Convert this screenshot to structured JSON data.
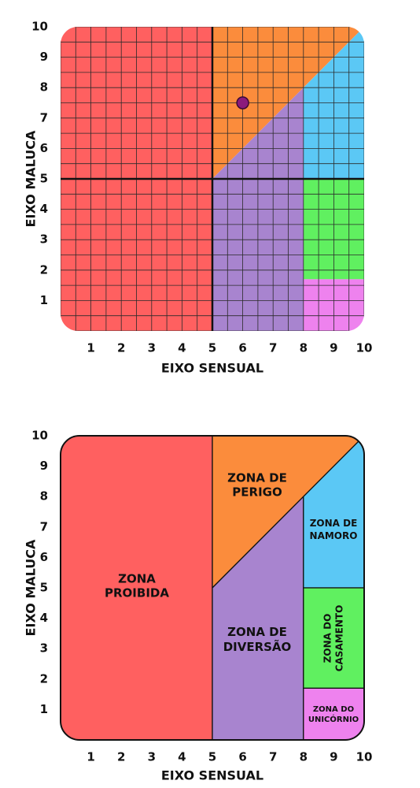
{
  "chart_data": [
    {
      "type": "area",
      "title": "",
      "xlabel": "EIXO SENSUAL",
      "ylabel": "EIXO MALUCA",
      "xlim": [
        0,
        10
      ],
      "ylim": [
        0,
        10
      ],
      "x_ticks": [
        "1",
        "2",
        "3",
        "4",
        "5",
        "6",
        "7",
        "8",
        "9",
        "10"
      ],
      "y_ticks": [
        "1",
        "2",
        "3",
        "4",
        "5",
        "6",
        "7",
        "8",
        "9",
        "10"
      ],
      "grid": true,
      "grid_step": 0.5,
      "divider_lines": {
        "x": 5,
        "y": 5
      },
      "regions": [
        {
          "id": "proibida",
          "color": "#ff6060",
          "polygon": [
            [
              0,
              0
            ],
            [
              5,
              0
            ],
            [
              5,
              10
            ],
            [
              0,
              10
            ]
          ]
        },
        {
          "id": "perigo",
          "color": "#fb8c3c",
          "polygon": [
            [
              5,
              5
            ],
            [
              5,
              10
            ],
            [
              10,
              10
            ]
          ]
        },
        {
          "id": "diversao",
          "color": "#a884cf",
          "polygon": [
            [
              5,
              0
            ],
            [
              8,
              0
            ],
            [
              8,
              8
            ],
            [
              5,
              5
            ]
          ]
        },
        {
          "id": "namoro",
          "color": "#5bc8f5",
          "polygon": [
            [
              8,
              5
            ],
            [
              10,
              5
            ],
            [
              10,
              10
            ],
            [
              8,
              8
            ]
          ]
        },
        {
          "id": "casamento",
          "color": "#60f060",
          "polygon": [
            [
              8,
              1.7
            ],
            [
              10,
              1.7
            ],
            [
              10,
              5
            ],
            [
              8,
              5
            ]
          ]
        },
        {
          "id": "unicornio",
          "color": "#ee82ee",
          "polygon": [
            [
              8,
              0
            ],
            [
              10,
              0
            ],
            [
              10,
              1.7
            ],
            [
              8,
              1.7
            ]
          ]
        }
      ],
      "points": [
        {
          "x": 6,
          "y": 7.5,
          "color": "#8b1a7c"
        }
      ]
    },
    {
      "type": "area",
      "title": "",
      "xlabel": "EIXO SENSUAL",
      "ylabel": "EIXO MALUCA",
      "xlim": [
        0,
        10
      ],
      "ylim": [
        0,
        10
      ],
      "x_ticks": [
        "1",
        "2",
        "3",
        "4",
        "5",
        "6",
        "7",
        "8",
        "9",
        "10"
      ],
      "y_ticks": [
        "1",
        "2",
        "3",
        "4",
        "5",
        "6",
        "7",
        "8",
        "9",
        "10"
      ],
      "grid": false,
      "regions": [
        {
          "id": "proibida",
          "color": "#ff6060",
          "polygon": [
            [
              0,
              0
            ],
            [
              5,
              0
            ],
            [
              5,
              10
            ],
            [
              0,
              10
            ]
          ],
          "label": [
            "ZONA",
            "PROIBIDA"
          ]
        },
        {
          "id": "perigo",
          "color": "#fb8c3c",
          "polygon": [
            [
              5,
              5
            ],
            [
              5,
              10
            ],
            [
              10,
              10
            ]
          ],
          "label": [
            "ZONA DE",
            "PERIGO"
          ]
        },
        {
          "id": "diversao",
          "color": "#a884cf",
          "polygon": [
            [
              5,
              0
            ],
            [
              8,
              0
            ],
            [
              8,
              8
            ],
            [
              5,
              5
            ]
          ],
          "label": [
            "ZONA DE",
            "DIVERSÃO"
          ]
        },
        {
          "id": "namoro",
          "color": "#5bc8f5",
          "polygon": [
            [
              8,
              5
            ],
            [
              10,
              5
            ],
            [
              10,
              10
            ],
            [
              8,
              8
            ]
          ],
          "label": [
            "ZONA DE",
            "NAMORO"
          ]
        },
        {
          "id": "casamento",
          "color": "#60f060",
          "polygon": [
            [
              8,
              1.7
            ],
            [
              10,
              1.7
            ],
            [
              10,
              5
            ],
            [
              8,
              5
            ]
          ],
          "label": [
            "ZONA DO",
            "CASAMENTO"
          ]
        },
        {
          "id": "unicornio",
          "color": "#ee82ee",
          "polygon": [
            [
              8,
              0
            ],
            [
              10,
              0
            ],
            [
              10,
              1.7
            ],
            [
              8,
              1.7
            ]
          ],
          "label": [
            "ZONA DO",
            "UNICÓRNIO"
          ]
        }
      ]
    }
  ]
}
